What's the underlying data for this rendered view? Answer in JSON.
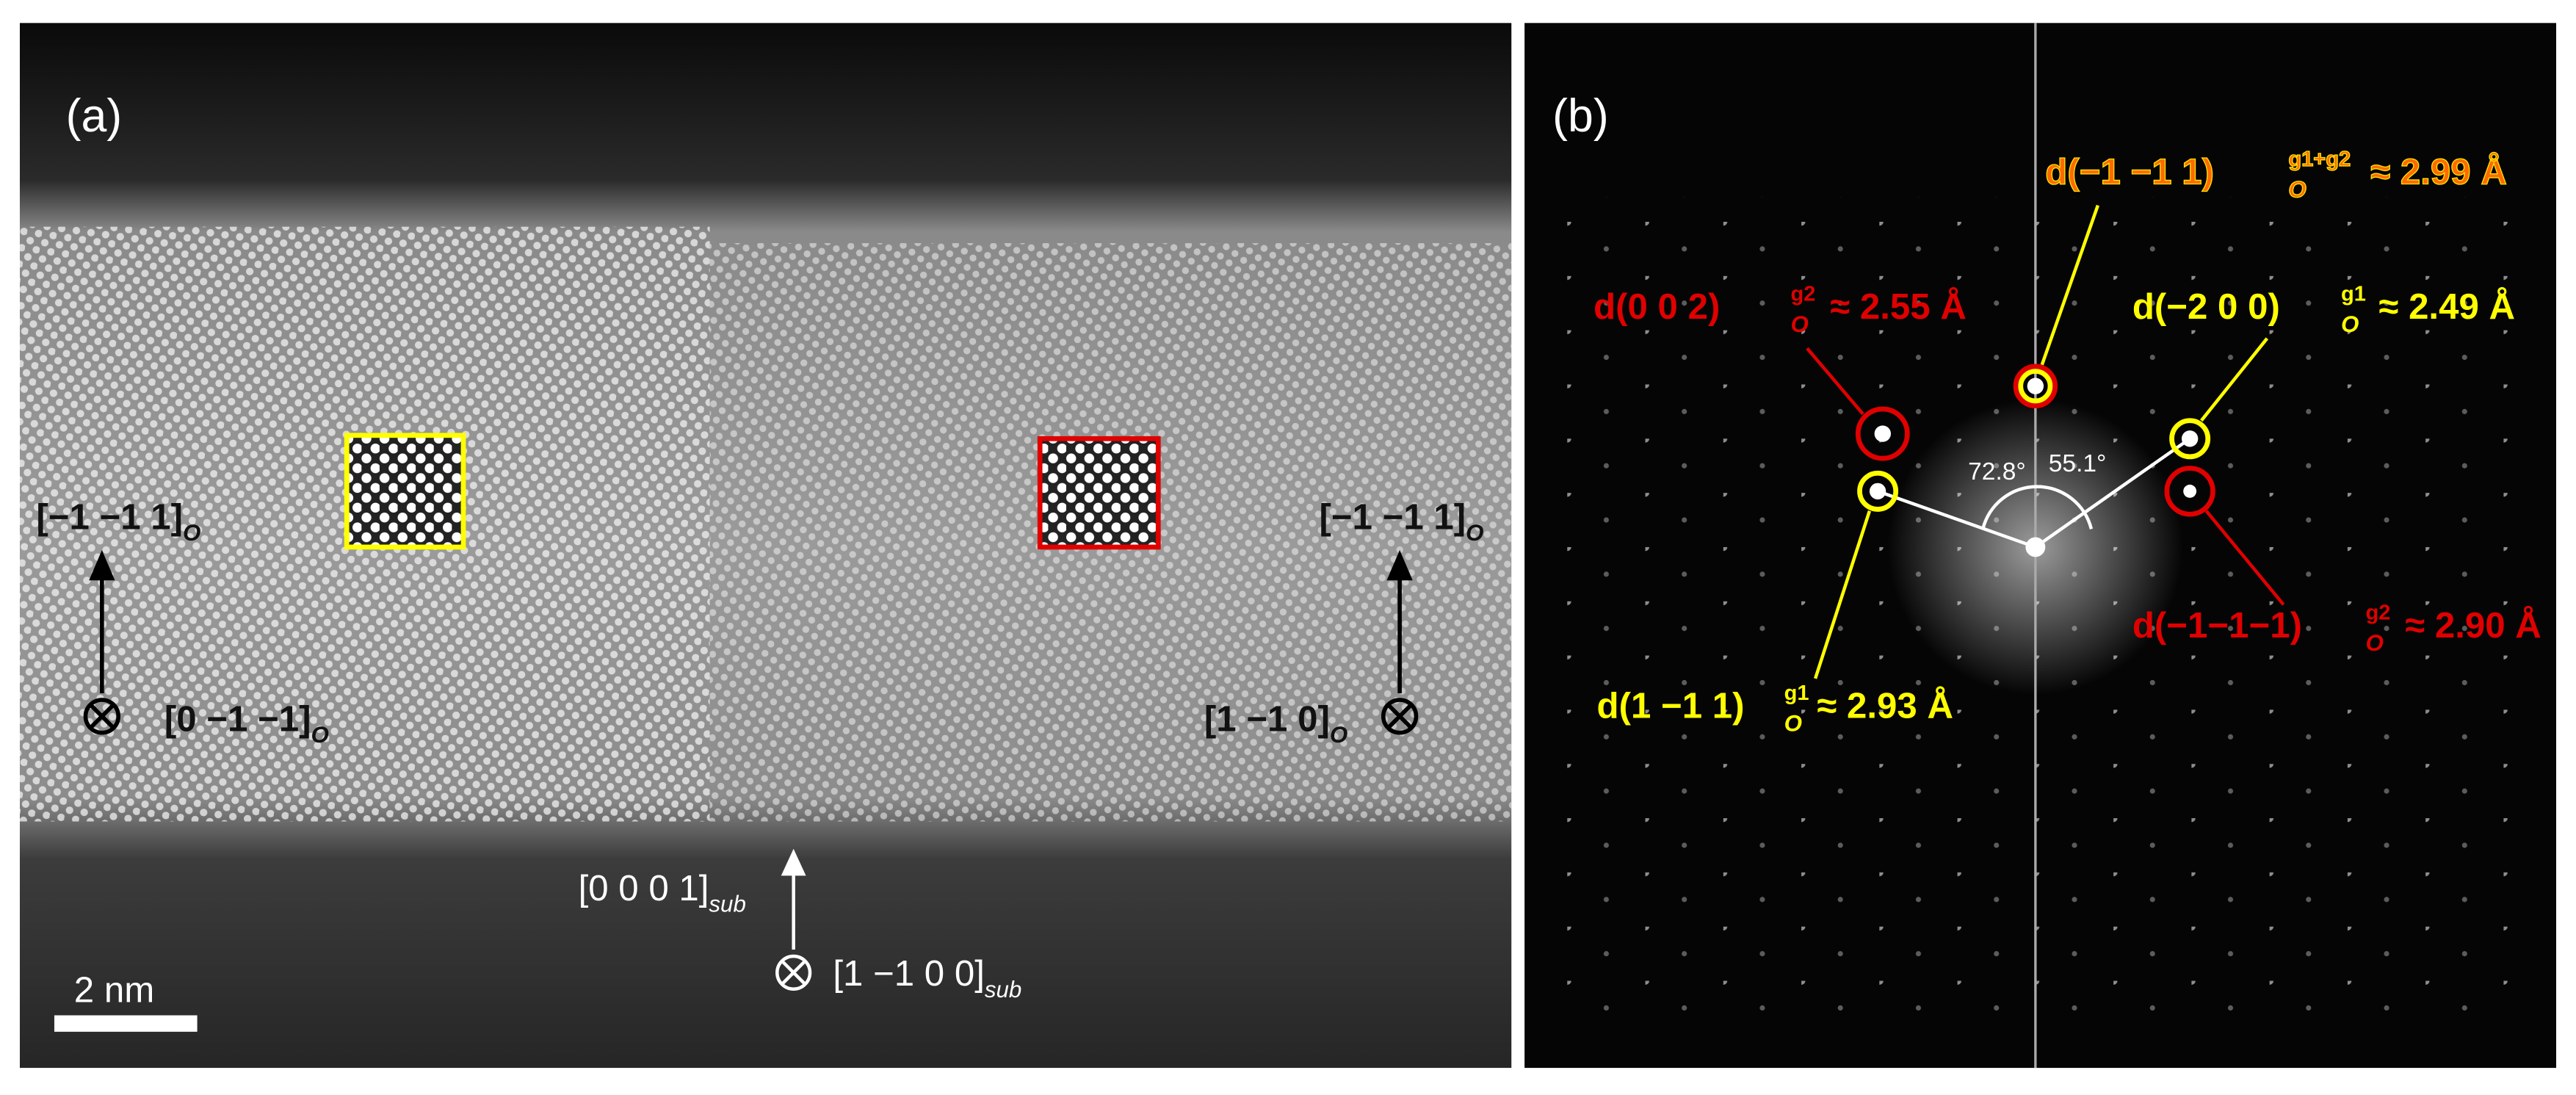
{
  "panel_a": {
    "label": "(a)",
    "scale_bar": "2 nm",
    "directions": [
      {
        "text": "[−1 −1 1]",
        "sub": "O"
      },
      {
        "text": "[0 −1 −1]",
        "sub": "O"
      },
      {
        "text": "[−1 −1 1]",
        "sub": "O"
      },
      {
        "text": "[1 −1 0]",
        "sub": "O"
      },
      {
        "text": "[0 0 0 1]",
        "sub": "sub"
      },
      {
        "text": "[1 −1 0 0]",
        "sub": "sub"
      }
    ]
  },
  "panel_b": {
    "label": "(b)",
    "angles": [
      "72.8°",
      "55.1°"
    ],
    "spots": [
      {
        "text": "d(−1 −1 1)",
        "sup": "g1+g2",
        "sub": "O",
        "value": "≈ 2.99 Å"
      },
      {
        "text": "d(0 0 2)",
        "sup": "g2",
        "sub": "O",
        "value": "≈ 2.55 Å"
      },
      {
        "text": "d(−2 0 0)",
        "sup": "g1",
        "sub": "O",
        "value": "≈ 2.49 Å"
      },
      {
        "text": "d(−1−1−1)",
        "sup": "g2",
        "sub": "O",
        "value": "≈ 2.90 Å"
      },
      {
        "text": "d(1 −1  1)",
        "sup": "g1",
        "sub": "O",
        "value": "≈ 2.93 Å"
      }
    ]
  }
}
